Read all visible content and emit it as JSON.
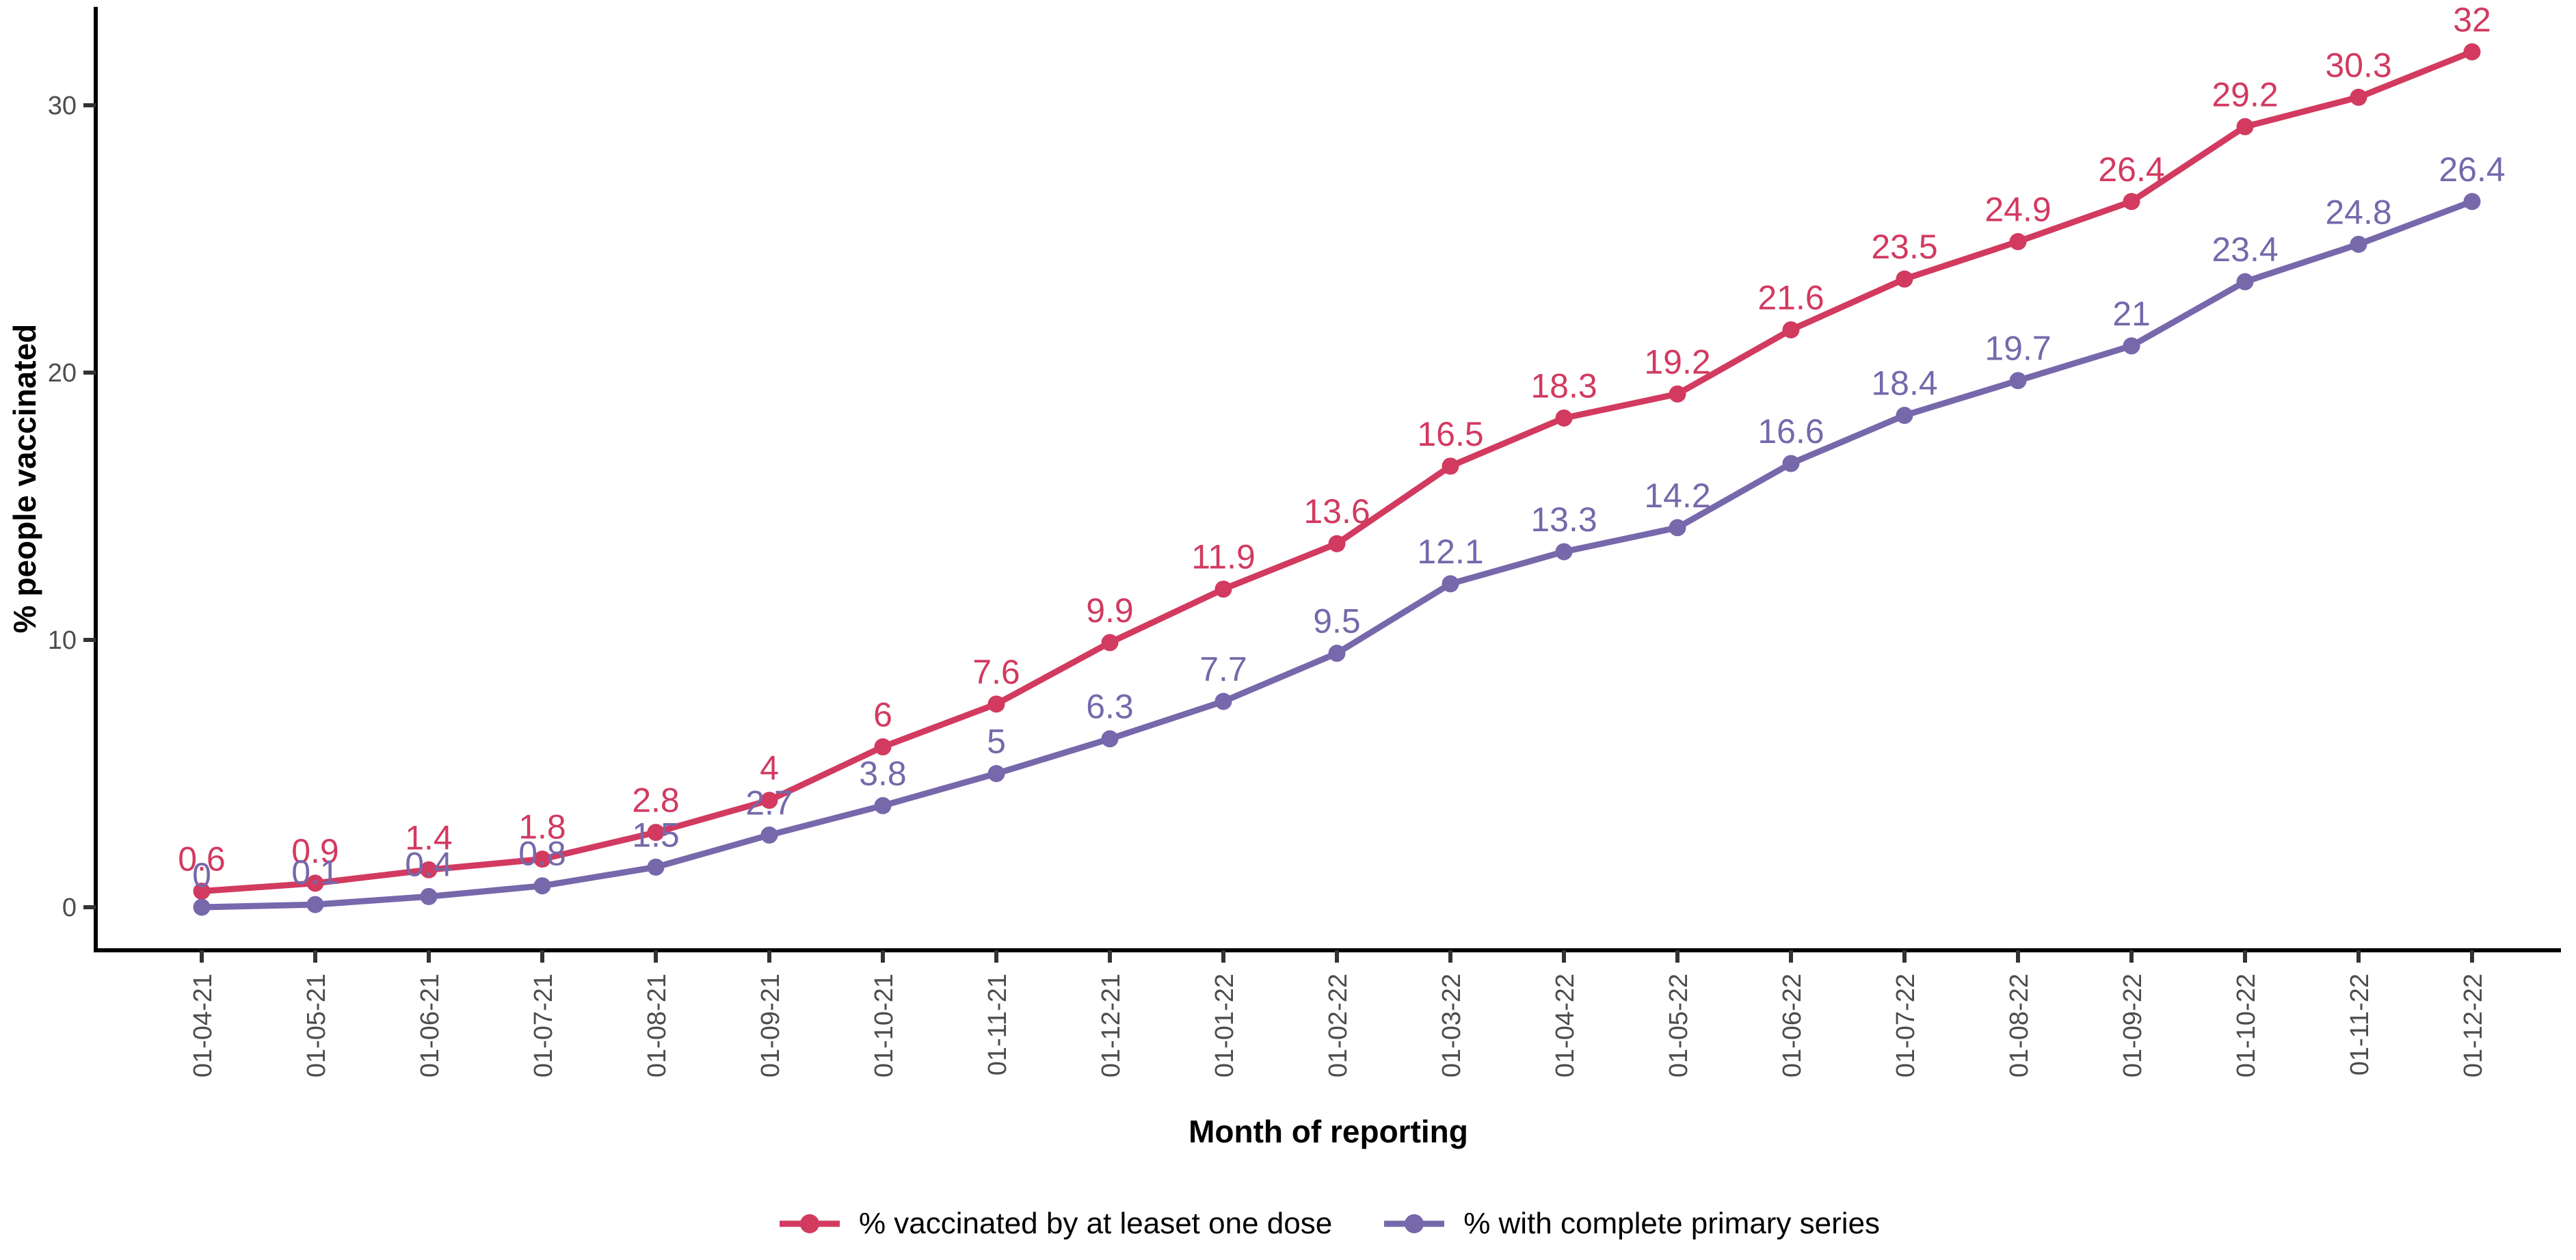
{
  "chart_data": {
    "type": "line",
    "title": "",
    "xlabel": "Month of reporting",
    "ylabel": "% people vaccinated",
    "x_tick_labels": [
      "01-04-21",
      "01-05-21",
      "01-06-21",
      "01-07-21",
      "01-08-21",
      "01-09-21",
      "01-10-21",
      "01-11-21",
      "01-12-21",
      "01-01-22",
      "01-02-22",
      "01-03-22",
      "01-04-22",
      "01-05-22",
      "01-06-22",
      "01-07-22",
      "01-08-22",
      "01-09-22",
      "01-10-22",
      "01-11-22",
      "01-12-22"
    ],
    "y_ticks": [
      0,
      10,
      20,
      30
    ],
    "ylim": [
      0,
      33.6
    ],
    "grid": false,
    "legend_position": "bottom",
    "point_labels_shown": true,
    "series": [
      {
        "name": "% vaccinated by at leaset one dose",
        "color": "#D23A60",
        "values": [
          0.6,
          0.9,
          1.4,
          1.8,
          2.8,
          4,
          6,
          7.6,
          9.9,
          11.9,
          13.6,
          16.5,
          18.3,
          19.2,
          21.6,
          23.5,
          24.9,
          26.4,
          29.2,
          30.3,
          32
        ]
      },
      {
        "name": "% with complete primary series",
        "color": "#7668AB",
        "values": [
          0,
          0.1,
          0.4,
          0.8,
          1.5,
          2.7,
          3.8,
          5,
          6.3,
          7.7,
          9.5,
          12.1,
          13.3,
          14.2,
          16.6,
          18.4,
          19.7,
          21,
          23.4,
          24.8,
          26.4
        ]
      }
    ]
  },
  "axis_style": {
    "line_color": "#000000",
    "tick_color": "#333333",
    "tick_label_color": "#4d4d4d"
  }
}
